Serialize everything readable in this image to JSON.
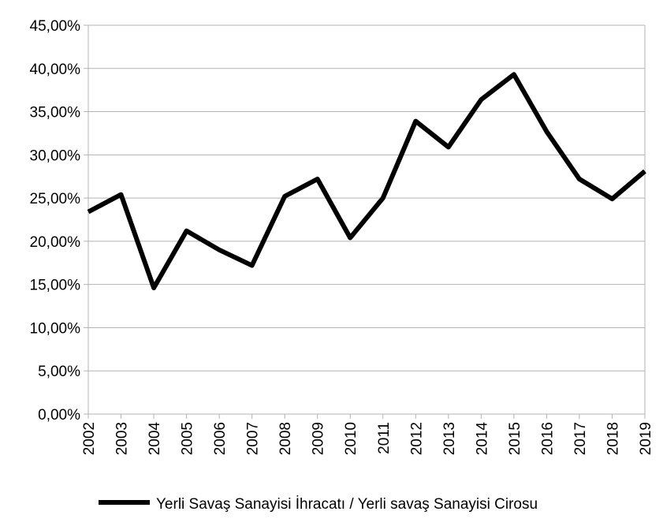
{
  "chart_data": {
    "type": "line",
    "title": "",
    "xlabel": "",
    "ylabel": "",
    "categories": [
      "2002",
      "2003",
      "2004",
      "2005",
      "2006",
      "2007",
      "2008",
      "2009",
      "2010",
      "2011",
      "2012",
      "2013",
      "2014",
      "2015",
      "2016",
      "2017",
      "2018",
      "2019"
    ],
    "series": [
      {
        "name": "Yerli Savaş Sanayisi İhracatı / Yerli savaş Sanayisi Cirosu",
        "values": [
          0.234,
          0.254,
          0.146,
          0.212,
          0.19,
          0.172,
          0.252,
          0.272,
          0.204,
          0.25,
          0.339,
          0.309,
          0.364,
          0.393,
          0.327,
          0.272,
          0.249,
          0.281
        ],
        "color": "#000000"
      }
    ],
    "ylim": [
      0,
      0.45
    ],
    "yticks": [
      0,
      0.05,
      0.1,
      0.15,
      0.2,
      0.25,
      0.3,
      0.35,
      0.4,
      0.45
    ],
    "ytick_labels": [
      "0,00%",
      "5,00%",
      "10,00%",
      "15,00%",
      "20,00%",
      "25,00%",
      "30,00%",
      "35,00%",
      "40,00%",
      "45,00%"
    ],
    "grid": true,
    "legend_position": "bottom"
  }
}
